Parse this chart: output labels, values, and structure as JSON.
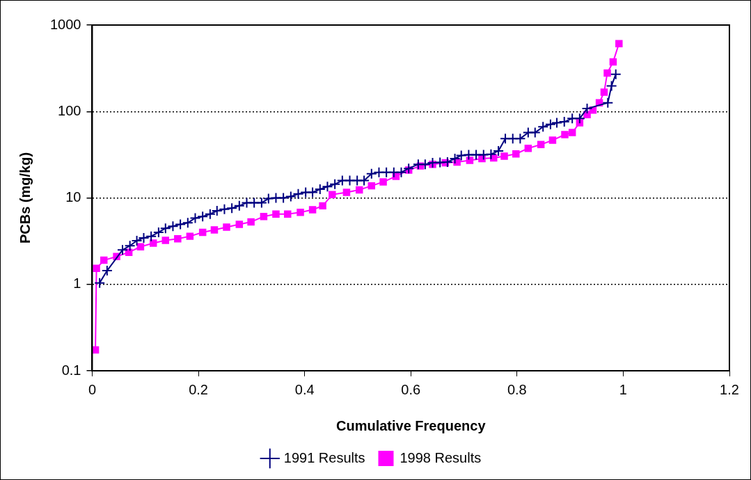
{
  "chart_data": {
    "type": "line",
    "xlabel": "Cumulative Frequency",
    "ylabel": "PCBs (mg/kg)",
    "xlim": [
      0,
      1.2
    ],
    "xticks": [
      0,
      0.2,
      0.4,
      0.6,
      0.8,
      1,
      1.2
    ],
    "ylim": [
      0.1,
      1000
    ],
    "yticks": [
      0.1,
      1,
      10,
      100,
      1000
    ],
    "log": "y",
    "grid": "y",
    "legend": "bottom",
    "line_style": "solid",
    "series": [
      {
        "name": "1991 Results",
        "color": "#000080",
        "marker": "cross",
        "x": [
          0.014,
          0.028,
          0.057,
          0.071,
          0.084,
          0.097,
          0.111,
          0.125,
          0.138,
          0.152,
          0.166,
          0.18,
          0.194,
          0.208,
          0.222,
          0.235,
          0.249,
          0.263,
          0.277,
          0.291,
          0.305,
          0.319,
          0.332,
          0.346,
          0.36,
          0.374,
          0.388,
          0.402,
          0.415,
          0.429,
          0.443,
          0.457,
          0.471,
          0.485,
          0.499,
          0.512,
          0.526,
          0.54,
          0.554,
          0.568,
          0.582,
          0.596,
          0.614,
          0.627,
          0.641,
          0.655,
          0.669,
          0.683,
          0.695,
          0.709,
          0.723,
          0.737,
          0.751,
          0.765,
          0.778,
          0.792,
          0.806,
          0.821,
          0.834,
          0.849,
          0.863,
          0.875,
          0.889,
          0.904,
          0.918,
          0.932,
          0.971,
          0.978,
          0.986
        ],
        "values": [
          1.04,
          1.44,
          2.5,
          2.8,
          3.2,
          3.45,
          3.6,
          4,
          4.45,
          4.7,
          4.95,
          5.15,
          5.85,
          6.1,
          6.5,
          7.1,
          7.4,
          7.6,
          8.1,
          8.8,
          8.8,
          8.8,
          9.8,
          10,
          10,
          10.4,
          11.1,
          11.6,
          11.6,
          12.6,
          13.5,
          14.4,
          15.9,
          15.9,
          15.9,
          15.9,
          19,
          19.8,
          19.8,
          19.8,
          19.8,
          21.9,
          24.5,
          24.5,
          25.5,
          25.7,
          26,
          28.5,
          31,
          31.6,
          31.6,
          31.6,
          32,
          35,
          48.5,
          48.5,
          48.5,
          57,
          57,
          66.5,
          71,
          74,
          76,
          83,
          83,
          108,
          126,
          198,
          270
        ]
      },
      {
        "name": "1998 Results",
        "color": "#ff00ff",
        "marker": "square",
        "x": [
          0.006,
          0.008,
          0.022,
          0.046,
          0.069,
          0.091,
          0.115,
          0.138,
          0.161,
          0.184,
          0.208,
          0.23,
          0.253,
          0.277,
          0.299,
          0.323,
          0.346,
          0.368,
          0.392,
          0.415,
          0.434,
          0.452,
          0.479,
          0.503,
          0.526,
          0.548,
          0.572,
          0.596,
          0.618,
          0.641,
          0.665,
          0.687,
          0.711,
          0.734,
          0.756,
          0.776,
          0.798,
          0.821,
          0.845,
          0.867,
          0.89,
          0.904,
          0.918,
          0.932,
          0.943,
          0.955,
          0.964,
          0.97,
          0.981,
          0.992
        ],
        "values": [
          0.174,
          1.53,
          1.9,
          2.1,
          2.35,
          2.72,
          3,
          3.23,
          3.37,
          3.6,
          4,
          4.27,
          4.6,
          4.95,
          5.27,
          6.1,
          6.5,
          6.5,
          6.8,
          7.3,
          8.1,
          10.9,
          11.6,
          12.4,
          13.8,
          15.3,
          17.8,
          21,
          23.4,
          24.5,
          25.5,
          26,
          27.2,
          28.5,
          29,
          30.4,
          32.3,
          37.5,
          41.5,
          46.5,
          54,
          57,
          74,
          92,
          104,
          126,
          167,
          278,
          375,
          610
        ]
      }
    ]
  }
}
